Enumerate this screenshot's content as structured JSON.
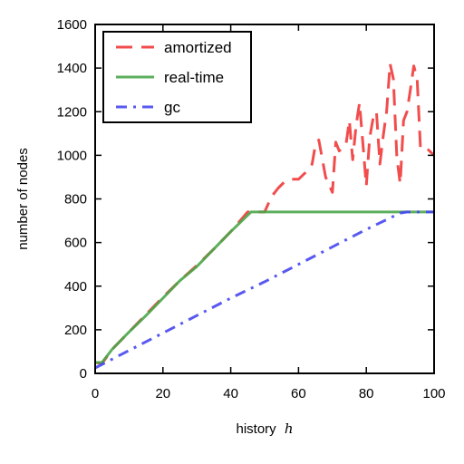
{
  "chart_data": {
    "type": "line",
    "xlabel": "history",
    "xlabel_var": "h",
    "ylabel": "number of nodes",
    "xlim": [
      0,
      100
    ],
    "ylim": [
      0,
      1600
    ],
    "xticks": [
      0,
      20,
      40,
      60,
      80,
      100
    ],
    "yticks": [
      0,
      200,
      400,
      600,
      800,
      1000,
      1200,
      1400,
      1600
    ],
    "grid": false,
    "legend_position": "top-left",
    "series": [
      {
        "name": "amortized",
        "color": "#f03a3a",
        "style": "dashed",
        "x": [
          0,
          2,
          5,
          10,
          15,
          20,
          25,
          30,
          35,
          40,
          45,
          47,
          50,
          52,
          54,
          56,
          58,
          60,
          62,
          64,
          65,
          66,
          68,
          70,
          71,
          72,
          74,
          75,
          76,
          77,
          78,
          79,
          80,
          81,
          82,
          83,
          84,
          85,
          86,
          87,
          88,
          89,
          90,
          91,
          92,
          93,
          94,
          95,
          96,
          98,
          100
        ],
        "y": [
          50,
          45,
          110,
          190,
          270,
          350,
          425,
          495,
          570,
          650,
          740,
          740,
          740,
          810,
          850,
          880,
          890,
          890,
          920,
          960,
          1050,
          1070,
          900,
          830,
          1060,
          1020,
          1050,
          1160,
          980,
          1140,
          1240,
          1050,
          860,
          1080,
          1170,
          1200,
          960,
          1090,
          1200,
          1420,
          1350,
          990,
          870,
          1160,
          1200,
          1300,
          1410,
          1350,
          1030,
          1030,
          1000
        ]
      },
      {
        "name": "real-time",
        "color": "#4aa64a",
        "style": "solid",
        "x": [
          0,
          2,
          5,
          10,
          15,
          20,
          25,
          30,
          35,
          40,
          46,
          50,
          60,
          70,
          80,
          90,
          100
        ],
        "y": [
          50,
          50,
          110,
          190,
          265,
          345,
          425,
          490,
          570,
          650,
          740,
          740,
          740,
          740,
          740,
          740,
          740
        ]
      },
      {
        "name": "gc",
        "color": "#4747f0",
        "style": "dashdot",
        "x": [
          0,
          10,
          20,
          30,
          40,
          50,
          60,
          70,
          80,
          90,
          92,
          100
        ],
        "y": [
          25,
          105,
          185,
          265,
          345,
          420,
          500,
          580,
          660,
          735,
          740,
          740
        ]
      }
    ]
  }
}
